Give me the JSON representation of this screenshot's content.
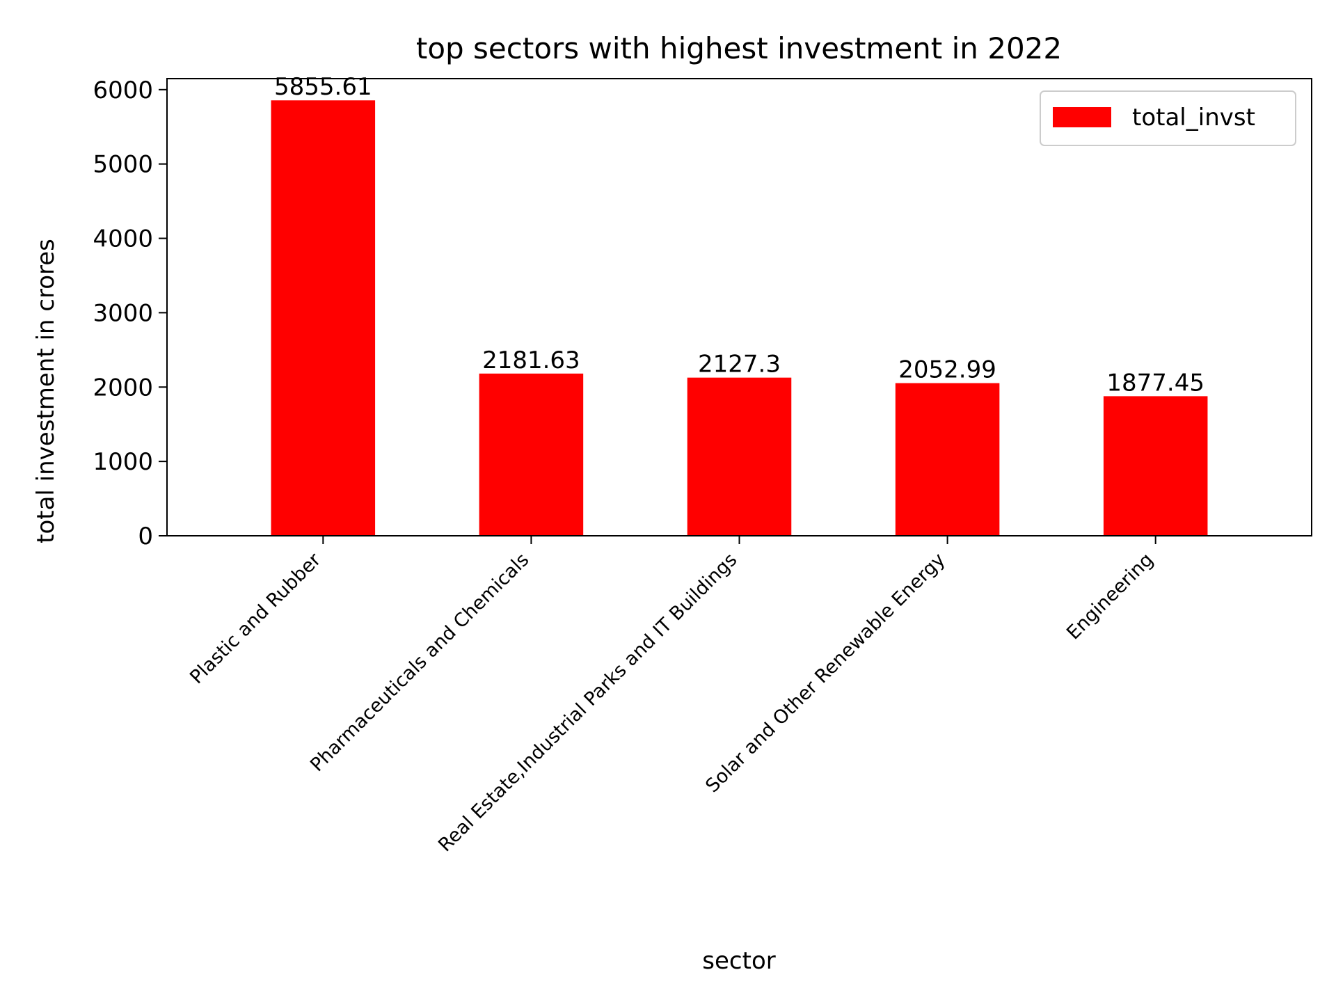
{
  "chart_data": {
    "type": "bar",
    "title": "top sectors with highest investment in 2022",
    "xlabel": "sector",
    "ylabel": "total investment in crores",
    "categories": [
      "Plastic and Rubber",
      "Pharmaceuticals and Chemicals",
      "Real Estate,Industrial Parks and IT Buildings",
      "Solar and Other Renewable Energy",
      "Engineering"
    ],
    "series": [
      {
        "name": "total_invst",
        "values": [
          5855.61,
          2181.63,
          2127.3,
          2052.99,
          1877.45
        ]
      }
    ],
    "data_labels": [
      "5855.61",
      "2181.63",
      "2127.3",
      "2052.99",
      "1877.45"
    ],
    "ylim": [
      0,
      6148
    ],
    "yticks": [
      0,
      1000,
      2000,
      3000,
      4000,
      5000,
      6000
    ],
    "ytick_labels": [
      "0",
      "1000",
      "2000",
      "3000",
      "4000",
      "5000",
      "6000"
    ],
    "grid": false,
    "legend_position": "top-right",
    "colors": {
      "bar": "#ff0000",
      "axes": "#000000",
      "background": "#ffffff"
    }
  }
}
